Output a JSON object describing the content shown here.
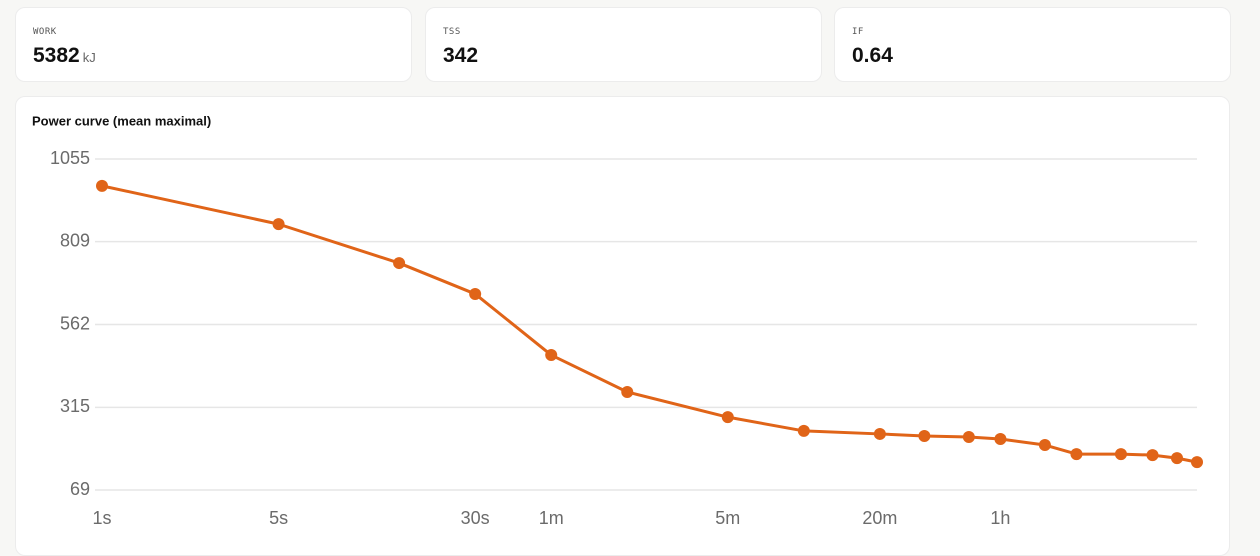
{
  "stats": [
    {
      "label": "WORK",
      "value": "5382",
      "unit": "kJ"
    },
    {
      "label": "TSS",
      "value": "342"
    },
    {
      "label": "IF",
      "value": "0.64"
    }
  ],
  "chart_data": {
    "type": "line",
    "title": "Power curve (mean maximal)",
    "log_x": true,
    "grid": true,
    "x": [
      1,
      5,
      15,
      30,
      60,
      120,
      300,
      600,
      1200,
      1800,
      2700,
      3600,
      5400,
      7200,
      10800,
      14400,
      18000,
      21600
    ],
    "series": [
      {
        "color": "#e06418",
        "values": [
          975,
          861,
          745,
          653,
          471,
          361,
          286,
          245,
          236,
          230,
          227,
          221,
          203,
          176,
          176,
          173,
          164,
          152
        ]
      }
    ],
    "xlim": [
      1,
      21600
    ],
    "xticks": [
      {
        "value": 1,
        "label": "1s"
      },
      {
        "value": 5,
        "label": "5s"
      },
      {
        "value": 30,
        "label": "30s"
      },
      {
        "value": 60,
        "label": "1m"
      },
      {
        "value": 300,
        "label": "5m"
      },
      {
        "value": 1200,
        "label": "20m"
      },
      {
        "value": 3600,
        "label": "1h"
      }
    ],
    "ylim": [
      69,
      1055
    ],
    "yticks": [
      69,
      315,
      562,
      809,
      1055
    ]
  }
}
